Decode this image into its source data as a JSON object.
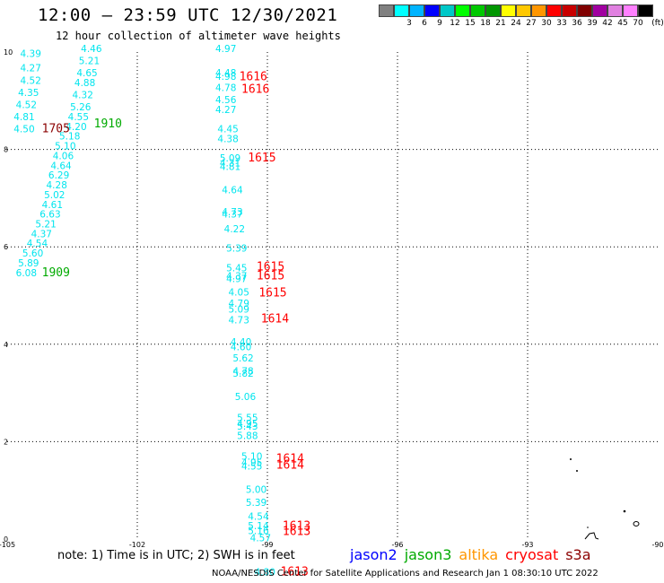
{
  "header": {
    "title": "12:00 — 23:59 UTC 12/30/2021",
    "subtitle": "12 hour collection of altimeter wave heights"
  },
  "legend": {
    "unit": "(ft)",
    "items": [
      {
        "label": "",
        "color": "#808080"
      },
      {
        "label": "3",
        "color": "#00ffff"
      },
      {
        "label": "6",
        "color": "#00b4ff"
      },
      {
        "label": "9",
        "color": "#0000ff"
      },
      {
        "label": "12",
        "color": "#00c8c8"
      },
      {
        "label": "15",
        "color": "#00ff00"
      },
      {
        "label": "18",
        "color": "#00c800"
      },
      {
        "label": "21",
        "color": "#009600"
      },
      {
        "label": "24",
        "color": "#ffff00"
      },
      {
        "label": "27",
        "color": "#ffc800"
      },
      {
        "label": "30",
        "color": "#ff9600"
      },
      {
        "label": "33",
        "color": "#ff0000"
      },
      {
        "label": "36",
        "color": "#c80000"
      },
      {
        "label": "39",
        "color": "#800000"
      },
      {
        "label": "42",
        "color": "#a000a0"
      },
      {
        "label": "45",
        "color": "#e080e0"
      },
      {
        "label": "70",
        "color": "#ff80ff"
      },
      {
        "label": "",
        "color": "#000000"
      }
    ]
  },
  "axes": {
    "x_ticks": [
      "-105",
      "-102",
      "-99",
      "-96",
      "-93",
      "-90"
    ],
    "y_ticks": [
      "10",
      "8",
      "6",
      "4",
      "2",
      "0"
    ]
  },
  "colors": {
    "wave_values": "#00e5ee",
    "jason2": "#0000ff",
    "jason3": "#00aa00",
    "altika": "#ff9600",
    "cryosat": "#ff0000",
    "s3a": "#8b0000"
  },
  "wave_heights": [
    {
      "lon": -104.7,
      "lat": 9.9,
      "value": "4.39"
    },
    {
      "lon": -104.7,
      "lat": 9.6,
      "value": "4.27"
    },
    {
      "lon": -104.7,
      "lat": 9.35,
      "value": "4.52"
    },
    {
      "lon": -104.75,
      "lat": 9.1,
      "value": "4.35"
    },
    {
      "lon": -104.8,
      "lat": 8.85,
      "value": "4.52"
    },
    {
      "lon": -104.85,
      "lat": 8.6,
      "value": "4.81"
    },
    {
      "lon": -104.85,
      "lat": 8.35,
      "value": "4.50"
    },
    {
      "lon": -103.3,
      "lat": 10.0,
      "value": "4.46"
    },
    {
      "lon": -103.35,
      "lat": 9.75,
      "value": "5.21"
    },
    {
      "lon": -103.4,
      "lat": 9.5,
      "value": "4.65"
    },
    {
      "lon": -103.45,
      "lat": 9.3,
      "value": "4.88"
    },
    {
      "lon": -103.5,
      "lat": 9.05,
      "value": "4.32"
    },
    {
      "lon": -103.55,
      "lat": 8.8,
      "value": "5.26"
    },
    {
      "lon": -103.6,
      "lat": 8.6,
      "value": "4.55"
    },
    {
      "lon": -103.65,
      "lat": 8.4,
      "value": "4.20"
    },
    {
      "lon": -103.8,
      "lat": 8.2,
      "value": "5.18"
    },
    {
      "lon": -103.9,
      "lat": 8.0,
      "value": "5.10"
    },
    {
      "lon": -103.95,
      "lat": 7.8,
      "value": "4.06"
    },
    {
      "lon": -104.0,
      "lat": 7.6,
      "value": "4.64"
    },
    {
      "lon": -104.05,
      "lat": 7.4,
      "value": "6.29"
    },
    {
      "lon": -104.1,
      "lat": 7.2,
      "value": "4.28"
    },
    {
      "lon": -104.15,
      "lat": 7.0,
      "value": "5.02"
    },
    {
      "lon": -104.2,
      "lat": 6.8,
      "value": "4.61"
    },
    {
      "lon": -104.25,
      "lat": 6.6,
      "value": "6.63"
    },
    {
      "lon": -104.35,
      "lat": 6.4,
      "value": "5.21"
    },
    {
      "lon": -104.45,
      "lat": 6.2,
      "value": "4.37"
    },
    {
      "lon": -104.55,
      "lat": 6.0,
      "value": "4.54"
    },
    {
      "lon": -104.65,
      "lat": 5.8,
      "value": "5.60"
    },
    {
      "lon": -104.75,
      "lat": 5.6,
      "value": "5.89"
    },
    {
      "lon": -104.8,
      "lat": 5.4,
      "value": "6.08"
    },
    {
      "lon": -100.2,
      "lat": 10.0,
      "value": "4.97"
    },
    {
      "lon": -100.2,
      "lat": 9.5,
      "value": "4.48"
    },
    {
      "lon": -100.2,
      "lat": 9.43,
      "value": "4.98"
    },
    {
      "lon": -100.2,
      "lat": 9.2,
      "value": "4.78"
    },
    {
      "lon": -100.2,
      "lat": 8.95,
      "value": "4.56"
    },
    {
      "lon": -100.2,
      "lat": 8.75,
      "value": "4.27"
    },
    {
      "lon": -100.15,
      "lat": 8.35,
      "value": "4.45"
    },
    {
      "lon": -100.15,
      "lat": 8.15,
      "value": "4.38"
    },
    {
      "lon": -100.1,
      "lat": 7.75,
      "value": "5.09"
    },
    {
      "lon": -100.1,
      "lat": 7.65,
      "value": "4.31"
    },
    {
      "lon": -100.1,
      "lat": 7.58,
      "value": "4.81"
    },
    {
      "lon": -100.05,
      "lat": 7.1,
      "value": "4.64"
    },
    {
      "lon": -100.05,
      "lat": 6.65,
      "value": "4.73"
    },
    {
      "lon": -100.05,
      "lat": 6.6,
      "value": "4.37"
    },
    {
      "lon": -100.0,
      "lat": 6.3,
      "value": "4.22"
    },
    {
      "lon": -99.95,
      "lat": 5.9,
      "value": "5.39"
    },
    {
      "lon": -99.95,
      "lat": 5.5,
      "value": "5.45"
    },
    {
      "lon": -99.95,
      "lat": 5.33,
      "value": "4.37"
    },
    {
      "lon": -99.95,
      "lat": 5.28,
      "value": "4.97"
    },
    {
      "lon": -99.9,
      "lat": 5.0,
      "value": "4.05"
    },
    {
      "lon": -99.9,
      "lat": 4.77,
      "value": "4.79"
    },
    {
      "lon": -99.9,
      "lat": 4.65,
      "value": "5.09"
    },
    {
      "lon": -99.9,
      "lat": 4.43,
      "value": "4.73"
    },
    {
      "lon": -99.85,
      "lat": 3.98,
      "value": "4.40"
    },
    {
      "lon": -99.85,
      "lat": 3.88,
      "value": "4.60"
    },
    {
      "lon": -99.8,
      "lat": 3.65,
      "value": "5.62"
    },
    {
      "lon": -99.8,
      "lat": 3.38,
      "value": "4.78"
    },
    {
      "lon": -99.8,
      "lat": 3.33,
      "value": "5.82"
    },
    {
      "lon": -99.75,
      "lat": 2.85,
      "value": "5.06"
    },
    {
      "lon": -99.7,
      "lat": 2.42,
      "value": "5.55"
    },
    {
      "lon": -99.7,
      "lat": 2.3,
      "value": "4.95"
    },
    {
      "lon": -99.7,
      "lat": 2.25,
      "value": "5.43"
    },
    {
      "lon": -99.7,
      "lat": 2.05,
      "value": "5.88"
    },
    {
      "lon": -99.6,
      "lat": 1.63,
      "value": "5.10"
    },
    {
      "lon": -99.6,
      "lat": 1.5,
      "value": "4.95"
    },
    {
      "lon": -99.6,
      "lat": 1.43,
      "value": "4.55"
    },
    {
      "lon": -99.5,
      "lat": 0.95,
      "value": "5.00"
    },
    {
      "lon": -99.5,
      "lat": 0.68,
      "value": "5.39"
    },
    {
      "lon": -99.45,
      "lat": 0.4,
      "value": "4.54"
    },
    {
      "lon": -99.45,
      "lat": 0.2,
      "value": "5.14"
    },
    {
      "lon": -99.45,
      "lat": 0.1,
      "value": "5.16"
    },
    {
      "lon": -99.4,
      "lat": -0.05,
      "value": "4.57"
    },
    {
      "lon": -99.3,
      "lat": -0.75,
      "value": "4.80"
    }
  ],
  "time_labels": [
    {
      "lon": -104.2,
      "lat": 8.35,
      "value": "1705",
      "sat": "s3a"
    },
    {
      "lon": -103.0,
      "lat": 8.45,
      "value": "1910",
      "sat": "jason3"
    },
    {
      "lon": -104.2,
      "lat": 5.4,
      "value": "1909",
      "sat": "jason3"
    },
    {
      "lon": -99.65,
      "lat": 9.42,
      "value": "1616",
      "sat": "cryosat"
    },
    {
      "lon": -99.6,
      "lat": 9.16,
      "value": "1616",
      "sat": "cryosat"
    },
    {
      "lon": -99.45,
      "lat": 7.75,
      "value": "1615",
      "sat": "cryosat"
    },
    {
      "lon": -99.25,
      "lat": 5.52,
      "value": "1615",
      "sat": "cryosat"
    },
    {
      "lon": -99.25,
      "lat": 5.33,
      "value": "1615",
      "sat": "cryosat"
    },
    {
      "lon": -99.2,
      "lat": 4.98,
      "value": "1615",
      "sat": "cryosat"
    },
    {
      "lon": -99.15,
      "lat": 4.45,
      "value": "1614",
      "sat": "cryosat"
    },
    {
      "lon": -98.8,
      "lat": 1.57,
      "value": "1614",
      "sat": "cryosat"
    },
    {
      "lon": -98.8,
      "lat": 1.45,
      "value": "1614",
      "sat": "cryosat"
    },
    {
      "lon": -98.65,
      "lat": 0.19,
      "value": "1613",
      "sat": "cryosat"
    },
    {
      "lon": -98.65,
      "lat": 0.08,
      "value": "1613",
      "sat": "cryosat"
    },
    {
      "lon": -98.7,
      "lat": -0.75,
      "value": "1613",
      "sat": "cryosat"
    }
  ],
  "footer": {
    "note": "note:  1) Time is in UTC;  2) SWH is in feet",
    "satellites": [
      {
        "name": "jason2",
        "key": "jason2"
      },
      {
        "name": "jason3",
        "key": "jason3"
      },
      {
        "name": "altika",
        "key": "altika"
      },
      {
        "name": "cryosat",
        "key": "cryosat"
      },
      {
        "name": "s3a",
        "key": "s3a"
      }
    ],
    "credit": "NOAA/NESDIS Center for Satellite Applications and Research    Jan  1 08:30:10 UTC 2022"
  }
}
